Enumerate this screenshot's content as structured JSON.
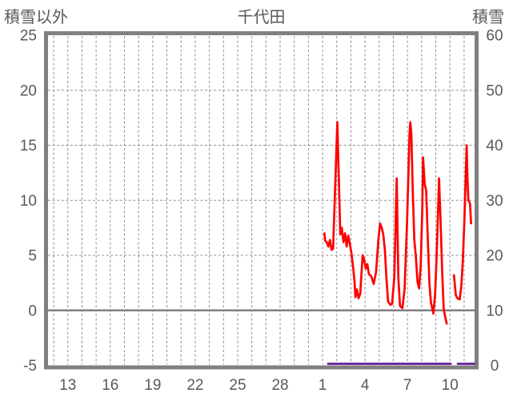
{
  "title": "千代田",
  "left_axis_title": "積雪以外",
  "right_axis_title": "積雪",
  "colors": {
    "temperature_line": "#ff0000",
    "snow_line": "#7030a0",
    "border": "#808080",
    "zero_line": "#808080",
    "grid": "#8f8f8f",
    "text": "#595959",
    "background": "#ffffff"
  },
  "chart_data": {
    "type": "line",
    "title": "千代田",
    "x_axis": {
      "domain_days": [
        11.6,
        41.74
      ],
      "grid_day_start": 12,
      "grid_day_end": 41,
      "ticks": [
        {
          "label": "13",
          "day": 13
        },
        {
          "label": "16",
          "day": 16
        },
        {
          "label": "19",
          "day": 19
        },
        {
          "label": "22",
          "day": 22
        },
        {
          "label": "25",
          "day": 25
        },
        {
          "label": "28",
          "day": 28
        },
        {
          "label": "1",
          "day": 31
        },
        {
          "label": "4",
          "day": 34
        },
        {
          "label": "7",
          "day": 37
        },
        {
          "label": "10",
          "day": 40
        }
      ]
    },
    "left_axis": {
      "title": "積雪以外",
      "min": -5,
      "max": 25,
      "ticks": [
        25,
        20,
        15,
        10,
        5,
        0,
        -5
      ],
      "dashed_grid_values": [
        20,
        15,
        10,
        5
      ],
      "zero_line_value": 0
    },
    "right_axis": {
      "title": "積雪",
      "min": 0,
      "max": 60,
      "ticks": [
        60,
        50,
        40,
        30,
        20,
        10,
        0
      ]
    },
    "grid": true,
    "legend": "none",
    "series": [
      {
        "name": "積雪以外",
        "axis": "left",
        "color": "#ff0000",
        "width": 2.7,
        "segments": [
          [
            [
              31.13,
              7.0
            ],
            [
              31.18,
              6.3
            ],
            [
              31.29,
              6.2
            ],
            [
              31.41,
              5.8
            ],
            [
              31.52,
              6.4
            ],
            [
              31.63,
              5.5
            ],
            [
              31.74,
              5.6
            ],
            [
              32.04,
              17.1
            ],
            [
              32.25,
              6.9
            ],
            [
              32.36,
              7.5
            ],
            [
              32.47,
              6.2
            ],
            [
              32.59,
              7.0
            ],
            [
              32.7,
              5.8
            ],
            [
              32.81,
              6.8
            ],
            [
              32.92,
              6.1
            ],
            [
              33.04,
              5.2
            ],
            [
              33.15,
              4.0
            ],
            [
              33.26,
              2.6
            ],
            [
              33.32,
              1.2
            ],
            [
              33.43,
              1.9
            ],
            [
              33.54,
              1.1
            ],
            [
              33.66,
              1.5
            ],
            [
              33.83,
              5.0
            ],
            [
              33.94,
              4.6
            ],
            [
              34.05,
              3.8
            ],
            [
              34.16,
              4.2
            ],
            [
              34.27,
              3.3
            ],
            [
              34.44,
              3.1
            ],
            [
              34.61,
              2.4
            ],
            [
              34.78,
              3.5
            ],
            [
              34.95,
              6.5
            ],
            [
              35.06,
              7.9
            ],
            [
              35.18,
              7.5
            ],
            [
              35.29,
              6.9
            ],
            [
              35.4,
              5.5
            ],
            [
              35.51,
              3.0
            ],
            [
              35.63,
              0.8
            ],
            [
              35.79,
              0.5
            ],
            [
              35.91,
              0.6
            ],
            [
              36.07,
              3.0
            ],
            [
              36.24,
              12.0
            ],
            [
              36.35,
              3.0
            ],
            [
              36.47,
              0.4
            ],
            [
              36.64,
              0.2
            ],
            [
              36.8,
              2.0
            ],
            [
              36.97,
              8.0
            ],
            [
              37.14,
              16.0
            ],
            [
              37.2,
              17.1
            ],
            [
              37.27,
              16.0
            ],
            [
              37.37,
              11.0
            ],
            [
              37.48,
              6.4
            ],
            [
              37.59,
              4.9
            ],
            [
              37.71,
              2.6
            ],
            [
              37.82,
              2.0
            ],
            [
              37.93,
              4.0
            ],
            [
              38.04,
              9.0
            ],
            [
              38.1,
              13.9
            ],
            [
              38.21,
              11.5
            ],
            [
              38.32,
              10.9
            ],
            [
              38.44,
              6.4
            ],
            [
              38.55,
              2.4
            ],
            [
              38.66,
              0.7
            ],
            [
              38.78,
              0.0
            ],
            [
              38.83,
              -0.3
            ],
            [
              38.95,
              1.5
            ],
            [
              39.06,
              5.0
            ],
            [
              39.23,
              12.0
            ],
            [
              39.34,
              7.9
            ],
            [
              39.45,
              3.5
            ],
            [
              39.56,
              0.1
            ],
            [
              39.68,
              -0.7
            ],
            [
              39.77,
              -1.2
            ]
          ],
          [
            [
              40.28,
              3.2
            ],
            [
              40.41,
              1.4
            ],
            [
              40.52,
              1.1
            ],
            [
              40.69,
              1.0
            ],
            [
              40.8,
              2.2
            ],
            [
              40.91,
              4.5
            ],
            [
              41.03,
              8.5
            ],
            [
              41.18,
              15.0
            ],
            [
              41.23,
              12.2
            ],
            [
              41.3,
              10.0
            ],
            [
              41.42,
              9.7
            ],
            [
              41.49,
              7.9
            ]
          ]
        ]
      },
      {
        "name": "積雪",
        "axis": "right",
        "color": "#7030a0",
        "width": 3,
        "segments": [
          [
            [
              31.39,
              0
            ],
            [
              40.05,
              0
            ]
          ],
          [
            [
              40.56,
              0
            ],
            [
              41.73,
              0
            ]
          ]
        ]
      }
    ]
  }
}
